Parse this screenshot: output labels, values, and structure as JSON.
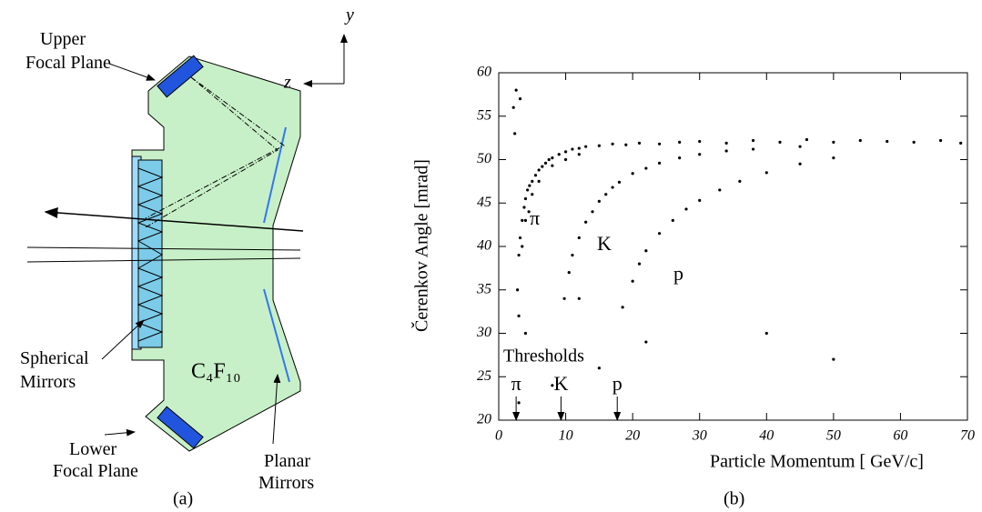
{
  "diagram": {
    "axes": {
      "y": "y",
      "z": "z"
    },
    "labels": {
      "upper_focal_plane": [
        "Upper",
        "Focal Plane"
      ],
      "lower_focal_plane": [
        "Lower",
        "Focal Plane"
      ],
      "spherical_mirrors": [
        "Spherical",
        "Mirrors"
      ],
      "planar_mirrors": [
        "Planar",
        "Mirrors"
      ],
      "gas": "C₄F₁₀"
    },
    "caption": "(a)"
  },
  "chart_data": {
    "type": "scatter",
    "xlabel": "Particle Momentum [ GeV/c]",
    "ylabel": "Čerenkov Angle [mrad]",
    "xlim": [
      0,
      70
    ],
    "xticks": [
      0,
      10,
      20,
      30,
      40,
      50,
      60,
      70
    ],
    "ylim": [
      20,
      60
    ],
    "yticks": [
      20,
      25,
      30,
      35,
      40,
      45,
      50,
      55,
      60
    ],
    "color": "#000000",
    "x": [
      2.8,
      3,
      3.2,
      3.5,
      3.8,
      4,
      4.3,
      4.6,
      5,
      5.5,
      6,
      6.5,
      7,
      7.5,
      8,
      9,
      10,
      11,
      12,
      13,
      15,
      17,
      19,
      21,
      24,
      27,
      30,
      34,
      38,
      42,
      46,
      50,
      54,
      58,
      62,
      66,
      69,
      4,
      5,
      6,
      8,
      10,
      12,
      3.5,
      4.5,
      9.8,
      10.5,
      11,
      12,
      13,
      14,
      15,
      16,
      17,
      18,
      20,
      22,
      24,
      27,
      30,
      34,
      38,
      45,
      18.5,
      20,
      21,
      22,
      24,
      26,
      28,
      30,
      33,
      36,
      40,
      45,
      50,
      2.2,
      2.6,
      3.2,
      2.4,
      3,
      4,
      12,
      15,
      22,
      40,
      8,
      50,
      3
    ],
    "values": [
      35,
      39,
      41,
      43,
      44.5,
      45.5,
      46.5,
      47,
      47.5,
      48.2,
      48.8,
      49.2,
      49.6,
      50,
      50.2,
      50.6,
      50.9,
      51.2,
      51.3,
      51.5,
      51.6,
      51.8,
      51.7,
      51.9,
      51.8,
      52,
      52.1,
      51.9,
      52.2,
      52,
      52.3,
      52,
      52.2,
      52.1,
      52,
      52.2,
      51.9,
      43,
      46,
      47.5,
      49.3,
      50,
      50.6,
      40,
      44,
      34,
      37,
      39,
      41,
      42.8,
      44,
      45.2,
      46,
      46.8,
      47.4,
      48.4,
      49,
      49.6,
      50.2,
      50.6,
      51,
      51.2,
      51.5,
      33,
      36,
      38,
      39.5,
      41.5,
      43,
      44.3,
      45.3,
      46.5,
      47.5,
      48.5,
      49.5,
      50.2,
      56,
      58,
      57,
      53,
      32,
      30,
      34,
      26,
      29,
      30,
      24,
      27,
      22
    ],
    "annotations": [
      "π",
      "K",
      "p"
    ],
    "thresholds": {
      "label": "Thresholds",
      "particles": [
        "π",
        "K",
        "p"
      ],
      "momenta": [
        2.6,
        9.3,
        17.7
      ]
    },
    "caption": "(b)"
  }
}
